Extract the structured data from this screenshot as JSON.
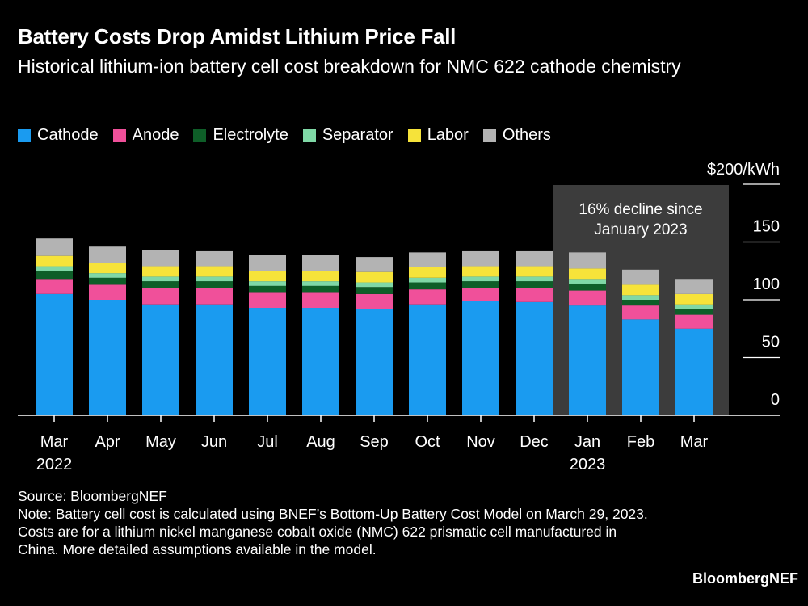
{
  "title": "Battery Costs Drop Amidst Lithium Price Fall",
  "subtitle": "Historical lithium-ion battery cell cost breakdown for NMC 622 cathode chemistry",
  "source_label": "Source: BloombergNEF",
  "note": "Note: Battery cell cost is calculated using BNEF’s Bottom-Up Battery Cost Model on March 29, 2023. Costs are for a lithium nickel manganese cobalt oxide (NMC) 622 prismatic cell manufactured in China. More detailed assumptions available in the model.",
  "brand": "BloombergNEF",
  "chart_data": {
    "type": "bar",
    "stacked": true,
    "categories": [
      "Mar",
      "Apr",
      "May",
      "Jun",
      "Jul",
      "Aug",
      "Sep",
      "Oct",
      "Nov",
      "Dec",
      "Jan",
      "Feb",
      "Mar"
    ],
    "category_sublabels": [
      "2022",
      "",
      "",
      "",
      "",
      "",
      "",
      "",
      "",
      "",
      "2023",
      "",
      ""
    ],
    "series": [
      {
        "name": "Cathode",
        "color": "#1a9bf0",
        "values": [
          105,
          100,
          96,
          96,
          93,
          93,
          92,
          96,
          99,
          98,
          95,
          83,
          75
        ]
      },
      {
        "name": "Anode",
        "color": "#f0509a",
        "values": [
          13,
          13,
          14,
          14,
          13,
          13,
          13,
          13,
          11,
          12,
          13,
          12,
          12
        ]
      },
      {
        "name": "Electrolyte",
        "color": "#0e5e28",
        "values": [
          7,
          6,
          6,
          6,
          6,
          6,
          6,
          6,
          6,
          6,
          6,
          5,
          5
        ]
      },
      {
        "name": "Separator",
        "color": "#7fd8a6",
        "values": [
          4,
          4,
          4,
          4,
          4,
          4,
          4,
          4,
          4,
          4,
          4,
          4,
          4
        ]
      },
      {
        "name": "Labor",
        "color": "#f6e33a",
        "values": [
          9,
          9,
          9,
          9,
          9,
          9,
          9,
          9,
          9,
          9,
          9,
          9,
          9
        ]
      },
      {
        "name": "Others",
        "color": "#b3b3b3",
        "values": [
          15,
          14,
          14,
          13,
          14,
          14,
          13,
          13,
          13,
          13,
          14,
          13,
          13
        ]
      }
    ],
    "y_unit_label": "$200/kWh",
    "ylim": [
      0,
      200
    ],
    "yticks": [
      0,
      50,
      100,
      150,
      200
    ],
    "ytick_labels": [
      "0",
      "50",
      "100",
      "150",
      "$200/kWh"
    ],
    "highlight": {
      "from_category": "Jan",
      "to_category": "Mar",
      "label_line1": "16% decline since",
      "label_line2": "January 2023"
    },
    "legend_position": "top-left",
    "axis_position": "right",
    "grid": false
  }
}
